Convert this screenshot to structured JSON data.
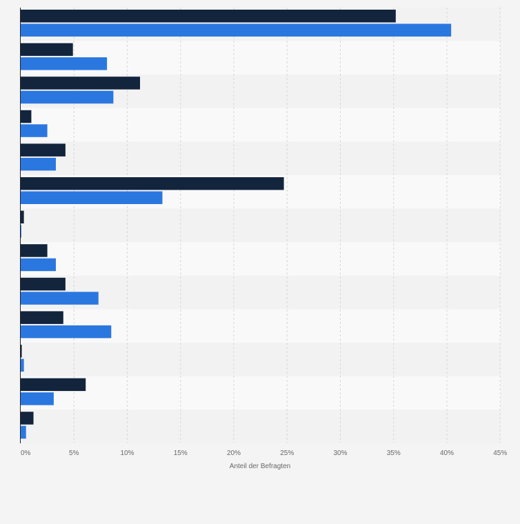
{
  "chart_data": {
    "type": "bar",
    "orientation": "horizontal",
    "categories": [
      "",
      "",
      "",
      "",
      "",
      "",
      "",
      "",
      "",
      "",
      "",
      "",
      ""
    ],
    "series": [
      {
        "color": "#13243d",
        "values": [
          35.2,
          4.9,
          11.2,
          1.0,
          4.2,
          24.7,
          0.3,
          2.5,
          4.2,
          4.0,
          0.1,
          6.1,
          1.2
        ]
      },
      {
        "color": "#2b77e0",
        "values": [
          40.4,
          8.1,
          8.7,
          2.5,
          3.3,
          13.3,
          0.05,
          3.3,
          7.3,
          8.5,
          0.3,
          3.1,
          0.5
        ]
      }
    ],
    "x_ticks": [
      "0%",
      "5%",
      "10%",
      "15%",
      "20%",
      "25%",
      "30%",
      "35%",
      "40%",
      "45%"
    ],
    "xlim": [
      0,
      45
    ],
    "xlabel": "Anteil der Befragten",
    "grid": "vertical-dashed",
    "legend": "none"
  }
}
